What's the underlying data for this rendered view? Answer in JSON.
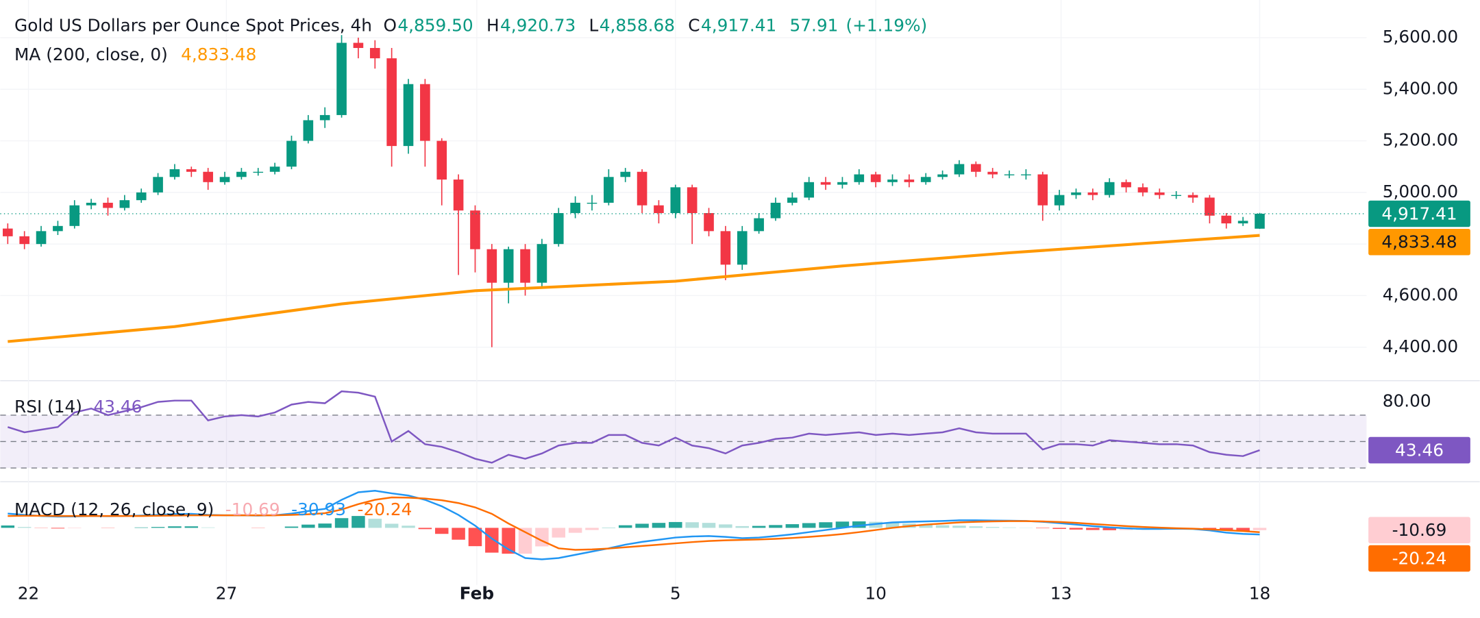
{
  "chart_data": [
    {
      "type": "candlestick",
      "title": "Gold US Dollars per Ounce Spot Prices, 4h",
      "legend": [
        {
          "key": "O",
          "text": "4,859.50"
        },
        {
          "key": "H",
          "text": "4,920.73"
        },
        {
          "key": "L",
          "text": "4,858.68"
        },
        {
          "key": "C",
          "text": "4,917.41"
        }
      ],
      "change": "57.91",
      "change_pct": "(+1.19%)",
      "open": [
        4860,
        4830,
        4800,
        4850,
        4870,
        4950,
        4960,
        4940,
        4970,
        5000,
        5060,
        5090,
        5080,
        5040,
        5060,
        5080,
        5080,
        5100,
        5200,
        5280,
        5300,
        5580,
        5560,
        5520,
        5180,
        5420,
        5200,
        5050,
        4930,
        4780,
        4650,
        4780,
        4650,
        4800,
        4920,
        4960,
        4960,
        5060,
        5080,
        4950,
        4920,
        5020,
        4920,
        4850,
        4720,
        4850,
        4900,
        4960,
        4980,
        5040,
        5030,
        5040,
        5070,
        5040,
        5050,
        5040,
        5060,
        5070,
        5110,
        5080,
        5070,
        5070,
        5070,
        4950,
        4990,
        5000,
        4990,
        5040,
        5020,
        5000,
        4990,
        4990,
        4980,
        4910,
        4880,
        4859.5
      ],
      "high": [
        4880,
        4850,
        4870,
        4890,
        4970,
        4975,
        4980,
        4990,
        5015,
        5075,
        5110,
        5100,
        5095,
        5080,
        5095,
        5095,
        5115,
        5220,
        5300,
        5330,
        5610,
        5600,
        5590,
        5560,
        5440,
        5440,
        5210,
        5070,
        4950,
        4800,
        4790,
        4800,
        4820,
        4940,
        4985,
        4990,
        5090,
        5095,
        5090,
        4970,
        5030,
        5030,
        4940,
        4870,
        4870,
        4920,
        4980,
        5000,
        5060,
        5060,
        5060,
        5090,
        5080,
        5070,
        5070,
        5075,
        5085,
        5125,
        5120,
        5095,
        5085,
        5090,
        5080,
        5010,
        5015,
        5015,
        5055,
        5050,
        5035,
        5015,
        5005,
        5000,
        4990,
        4920,
        4905,
        4920.73
      ],
      "low": [
        4800,
        4780,
        4790,
        4835,
        4860,
        4935,
        4910,
        4930,
        4960,
        4990,
        5050,
        5060,
        5010,
        5030,
        5050,
        5065,
        5070,
        5090,
        5190,
        5250,
        5290,
        5520,
        5480,
        5100,
        5150,
        5100,
        4950,
        4680,
        4690,
        4400,
        4570,
        4600,
        4630,
        4790,
        4900,
        4930,
        4950,
        5040,
        4920,
        4880,
        4900,
        4800,
        4830,
        4660,
        4700,
        4840,
        4890,
        4950,
        4970,
        5010,
        5015,
        5030,
        5020,
        5025,
        5020,
        5030,
        5050,
        5060,
        5060,
        5055,
        5055,
        5050,
        4890,
        4930,
        4975,
        4970,
        4980,
        5000,
        4985,
        4975,
        4975,
        4960,
        4880,
        4860,
        4870,
        4858.68
      ],
      "close": [
        4830,
        4800,
        4850,
        4870,
        4950,
        4960,
        4940,
        4970,
        5000,
        5060,
        5090,
        5080,
        5040,
        5060,
        5080,
        5080,
        5100,
        5200,
        5280,
        5300,
        5580,
        5560,
        5520,
        5180,
        5420,
        5200,
        5050,
        4930,
        4780,
        4650,
        4780,
        4650,
        4800,
        4920,
        4960,
        4960,
        5060,
        5080,
        4950,
        4920,
        5020,
        4920,
        4850,
        4720,
        4850,
        4900,
        4960,
        4980,
        5040,
        5030,
        5040,
        5070,
        5040,
        5050,
        5040,
        5060,
        5070,
        5110,
        5080,
        5070,
        5070,
        5070,
        4950,
        4990,
        5000,
        4990,
        5040,
        5020,
        5000,
        4990,
        4990,
        4980,
        4910,
        4880,
        4890,
        4917.41
      ],
      "up_color": "#089981",
      "down_color": "#f23645",
      "last_label": "4,917.41",
      "xlim": [
        -0.45,
        81.4
      ],
      "xticks": [
        {
          "value": 1.24,
          "label": "22"
        },
        {
          "value": 13.1,
          "label": "27"
        },
        {
          "value": 28.1,
          "label": "Feb"
        },
        {
          "value": 40,
          "label": "5"
        },
        {
          "value": 52,
          "label": "10"
        },
        {
          "value": 63.1,
          "label": "13"
        },
        {
          "value": 75,
          "label": "18"
        }
      ],
      "ylim": [
        4272,
        5746
      ],
      "yticks": [
        {
          "value": 4400,
          "label": "4,400.00"
        },
        {
          "value": 4600,
          "label": "4,600.00"
        },
        {
          "value": 4800,
          "label": "4,800.00"
        },
        {
          "value": 5000,
          "label": "5,000.00"
        },
        {
          "value": 5200,
          "label": "5,200.00"
        },
        {
          "value": 5400,
          "label": "5,400.00"
        },
        {
          "value": 5600,
          "label": "5,600.00"
        }
      ],
      "grid": true,
      "overlays": [
        {
          "type": "line",
          "name": "MA (200, close, 0)",
          "color": "#ff9800",
          "x": [
            0,
            10,
            20,
            28,
            40,
            50,
            60,
            75
          ],
          "values": [
            4422,
            4480,
            4568,
            4619,
            4656,
            4715,
            4766,
            4833.48
          ],
          "last_label": "4,833.48"
        }
      ]
    },
    {
      "type": "line",
      "name": "RSI (14)",
      "color": "#7e57c2",
      "values": [
        61,
        57,
        59,
        61,
        72,
        75,
        70,
        73,
        76,
        80,
        81,
        81,
        66,
        69,
        70,
        69,
        72,
        78,
        80,
        79,
        88,
        87,
        84,
        50,
        58,
        48,
        46,
        42,
        37,
        34,
        40,
        37,
        41,
        47,
        49,
        49,
        55,
        55,
        49,
        47,
        53,
        47,
        45,
        41,
        47,
        49,
        52,
        53,
        56,
        55,
        56,
        57,
        55,
        56,
        55,
        56,
        57,
        60,
        57,
        56,
        56,
        56,
        44,
        48,
        48,
        47,
        51,
        50,
        49,
        48,
        48,
        47,
        42,
        40,
        39,
        43.46
      ],
      "value_label": "43.46",
      "ylim": [
        20,
        95.7
      ],
      "yticks": [
        {
          "value": 80,
          "label": "80.00"
        }
      ],
      "levels": [
        70,
        50,
        30
      ]
    },
    {
      "type": "macd",
      "name": "MACD (12, 26, close, 9)",
      "ylim": [
        -265,
        212
      ],
      "histogram": {
        "values": [
          11,
          4,
          -1,
          -3,
          -2,
          0,
          -1,
          0,
          2,
          4,
          7,
          7,
          2,
          0,
          0,
          -1,
          0,
          6,
          15,
          20,
          45,
          55,
          42,
          19,
          10,
          -6,
          -28,
          -55,
          -85,
          -115,
          -120,
          -120,
          -86,
          -45,
          -23,
          -10,
          1,
          12,
          19,
          23,
          27,
          26,
          23,
          16,
          8,
          9,
          13,
          17,
          22,
          26,
          29,
          30,
          28,
          25,
          20,
          15,
          12,
          10,
          7,
          4,
          2,
          1,
          -2,
          -5,
          -8,
          -10,
          -11,
          -10,
          -9,
          -6,
          -2,
          -1,
          -5,
          -11,
          -13,
          -10.69
        ],
        "value_label": "-10.69",
        "colors": [
          "#26a69a",
          "#b2dfdb",
          "#ffcdd2",
          "#ff5252"
        ]
      },
      "macd": {
        "values": [
          66,
          60,
          55,
          52,
          53,
          55,
          54,
          55,
          57,
          60,
          64,
          65,
          60,
          58,
          58,
          57,
          58,
          66,
          78,
          88,
          130,
          165,
          172,
          160,
          150,
          130,
          100,
          60,
          10,
          -50,
          -100,
          -140,
          -146,
          -140,
          -125,
          -110,
          -95,
          -78,
          -65,
          -55,
          -45,
          -40,
          -38,
          -42,
          -48,
          -45,
          -38,
          -30,
          -20,
          -10,
          0,
          10,
          18,
          25,
          28,
          30,
          32,
          35,
          35,
          34,
          33,
          32,
          28,
          22,
          15,
          8,
          2,
          -2,
          -5,
          -5,
          -4,
          -5,
          -12,
          -22,
          -28,
          -30.93
        ],
        "color": "#2196f3",
        "value_label": "-30.93"
      },
      "signal": {
        "values": [
          55,
          56,
          56,
          55,
          55,
          55,
          55,
          55,
          55,
          56,
          57,
          58,
          58,
          58,
          58,
          58,
          58,
          60,
          63,
          68,
          85,
          110,
          130,
          141,
          140,
          136,
          128,
          115,
          95,
          65,
          20,
          -20,
          -60,
          -95,
          -102,
          -100,
          -96,
          -90,
          -84,
          -78,
          -72,
          -66,
          -61,
          -58,
          -56,
          -54,
          -51,
          -47,
          -42,
          -36,
          -29,
          -20,
          -10,
          0,
          8,
          15,
          20,
          25,
          28,
          30,
          31,
          31,
          30,
          27,
          23,
          18,
          13,
          8,
          4,
          1,
          -2,
          -4,
          -7,
          -11,
          -15,
          -20.24
        ],
        "color": "#ff6d00",
        "value_label": "-20.24"
      }
    }
  ]
}
